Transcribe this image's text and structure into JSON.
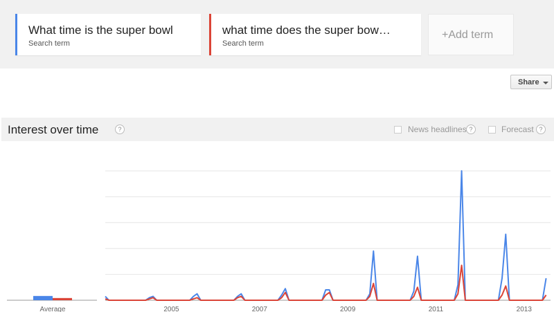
{
  "terms": [
    {
      "label": "What time is the super bowl",
      "sub": "Search term",
      "color": "#4a86e8"
    },
    {
      "label": "what time does the super bow…",
      "sub": "Search term",
      "color": "#db4437"
    }
  ],
  "add_term_label": "+Add term",
  "share_label": "Share",
  "section": {
    "title": "Interest over time",
    "help": "?",
    "news_headlines_label": "News headlines",
    "forecast_label": "Forecast"
  },
  "chart_data": {
    "type": "line",
    "x_ticks": [
      "2005",
      "2007",
      "2009",
      "2011",
      "2013"
    ],
    "average_label": "Average",
    "ylim": [
      0,
      100
    ],
    "series": [
      {
        "name": "What time is the super bowl",
        "color": "#4a86e8",
        "average": 3.3,
        "points": [
          [
            "2004-01",
            3
          ],
          [
            "2004-02",
            0
          ],
          [
            "2004-12",
            0
          ],
          [
            "2005-01",
            2
          ],
          [
            "2005-02",
            3
          ],
          [
            "2005-03",
            0
          ],
          [
            "2005-12",
            0
          ],
          [
            "2006-01",
            3
          ],
          [
            "2006-02",
            5
          ],
          [
            "2006-03",
            0
          ],
          [
            "2006-12",
            0
          ],
          [
            "2007-01",
            3
          ],
          [
            "2007-02",
            5
          ],
          [
            "2007-03",
            0
          ],
          [
            "2007-12",
            0
          ],
          [
            "2008-01",
            4
          ],
          [
            "2008-02",
            9
          ],
          [
            "2008-03",
            0
          ],
          [
            "2008-12",
            0
          ],
          [
            "2009-01",
            8
          ],
          [
            "2009-02",
            8
          ],
          [
            "2009-03",
            0
          ],
          [
            "2009-12",
            0
          ],
          [
            "2010-01",
            5
          ],
          [
            "2010-02",
            38
          ],
          [
            "2010-03",
            0
          ],
          [
            "2010-12",
            0
          ],
          [
            "2011-01",
            7
          ],
          [
            "2011-02",
            34
          ],
          [
            "2011-03",
            0
          ],
          [
            "2011-12",
            0
          ],
          [
            "2012-01",
            12
          ],
          [
            "2012-02",
            100
          ],
          [
            "2012-03",
            0
          ],
          [
            "2012-12",
            0
          ],
          [
            "2013-01",
            17
          ],
          [
            "2013-02",
            51
          ],
          [
            "2013-03",
            0
          ],
          [
            "2013-12",
            0
          ],
          [
            "2014-01",
            17
          ]
        ]
      },
      {
        "name": "what time does the super bowl",
        "color": "#db4437",
        "average": 1.7,
        "points": [
          [
            "2004-01",
            1
          ],
          [
            "2004-02",
            0
          ],
          [
            "2004-12",
            0
          ],
          [
            "2005-01",
            1
          ],
          [
            "2005-02",
            2
          ],
          [
            "2005-03",
            0
          ],
          [
            "2005-12",
            0
          ],
          [
            "2006-01",
            1
          ],
          [
            "2006-02",
            2
          ],
          [
            "2006-03",
            0
          ],
          [
            "2006-12",
            0
          ],
          [
            "2007-01",
            2
          ],
          [
            "2007-02",
            3
          ],
          [
            "2007-03",
            0
          ],
          [
            "2007-12",
            0
          ],
          [
            "2008-01",
            2
          ],
          [
            "2008-02",
            6
          ],
          [
            "2008-03",
            0
          ],
          [
            "2008-12",
            0
          ],
          [
            "2009-01",
            4
          ],
          [
            "2009-02",
            6
          ],
          [
            "2009-03",
            0
          ],
          [
            "2009-12",
            0
          ],
          [
            "2010-01",
            3
          ],
          [
            "2010-02",
            13
          ],
          [
            "2010-03",
            0
          ],
          [
            "2010-12",
            0
          ],
          [
            "2011-01",
            3
          ],
          [
            "2011-02",
            10
          ],
          [
            "2011-03",
            0
          ],
          [
            "2011-12",
            0
          ],
          [
            "2012-01",
            5
          ],
          [
            "2012-02",
            27
          ],
          [
            "2012-03",
            0
          ],
          [
            "2012-12",
            0
          ],
          [
            "2013-01",
            4
          ],
          [
            "2013-02",
            11
          ],
          [
            "2013-03",
            0
          ],
          [
            "2013-12",
            0
          ],
          [
            "2014-01",
            4
          ]
        ]
      }
    ]
  }
}
